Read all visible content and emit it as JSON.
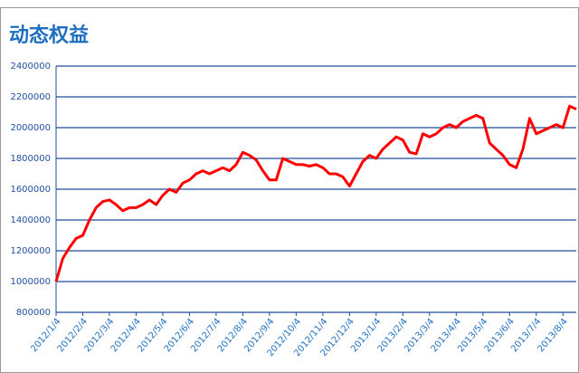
{
  "chart_data": {
    "type": "line",
    "title": "动态权益",
    "categories": [
      "2012/1/4",
      null,
      null,
      null,
      "2012/2/4",
      null,
      null,
      null,
      "2012/3/4",
      null,
      null,
      null,
      "2012/4/4",
      null,
      null,
      null,
      "2012/5/4",
      null,
      null,
      null,
      "2012/6/4",
      null,
      null,
      null,
      "2012/7/4",
      null,
      null,
      null,
      "2012/8/4",
      null,
      null,
      null,
      "2012/9/4",
      null,
      null,
      null,
      "2012/10/4",
      null,
      null,
      null,
      "2012/11/4",
      null,
      null,
      null,
      "2012/12/4",
      null,
      null,
      null,
      "2013/1/4",
      null,
      null,
      null,
      "2013/2/4",
      null,
      null,
      null,
      "2013/3/4",
      null,
      null,
      null,
      "2013/4/4",
      null,
      null,
      null,
      "2013/5/4",
      null,
      null,
      null,
      "2013/6/4",
      null,
      null,
      null,
      "2013/7/4",
      null,
      null,
      null,
      "2013/8/4",
      null,
      null
    ],
    "values": [
      1000000,
      1150000,
      1220000,
      1280000,
      1300000,
      1400000,
      1480000,
      1520000,
      1530000,
      1500000,
      1460000,
      1480000,
      1480000,
      1500000,
      1530000,
      1500000,
      1560000,
      1600000,
      1580000,
      1640000,
      1660000,
      1700000,
      1720000,
      1700000,
      1720000,
      1740000,
      1720000,
      1760000,
      1840000,
      1820000,
      1790000,
      1720000,
      1660000,
      1660000,
      1800000,
      1780000,
      1760000,
      1760000,
      1750000,
      1760000,
      1740000,
      1700000,
      1700000,
      1680000,
      1620000,
      1700000,
      1780000,
      1820000,
      1800000,
      1860000,
      1900000,
      1940000,
      1920000,
      1840000,
      1830000,
      1960000,
      1940000,
      1960000,
      2000000,
      2020000,
      2000000,
      2040000,
      2060000,
      2080000,
      2060000,
      1900000,
      1860000,
      1820000,
      1760000,
      1740000,
      1860000,
      2060000,
      1960000,
      1980000,
      2000000,
      2020000,
      2000000,
      2140000,
      2120000
    ],
    "color": "#ff0000",
    "ylim": [
      800000,
      2400000
    ],
    "yticks": [
      800000,
      1000000,
      1200000,
      1400000,
      1600000,
      1800000,
      2000000,
      2200000,
      2400000
    ],
    "grid": true
  }
}
